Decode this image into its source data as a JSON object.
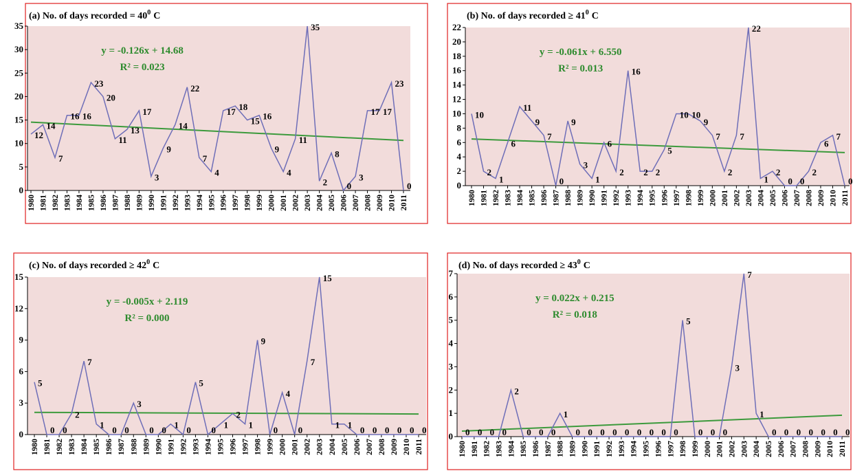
{
  "chart_data": [
    {
      "type": "line",
      "title": "(a) No. of days recorded = 40",
      "title_superscript": "0",
      "title_suffix": "C",
      "equation": "y = -0.126x + 14.68",
      "r_squared": "R² = 0.023",
      "categories": [
        "1980",
        "1981",
        "1982",
        "1983",
        "1984",
        "1985",
        "1986",
        "1987",
        "1988",
        "1989",
        "1990",
        "1991",
        "1992",
        "1993",
        "1994",
        "1995",
        "1996",
        "1997",
        "1998",
        "1999",
        "2000",
        "2001",
        "2002",
        "2003",
        "2004",
        "2005",
        "2006",
        "2007",
        "2008",
        "2009",
        "2010",
        "2011"
      ],
      "series": [
        {
          "color": "#6e6eb8",
          "values": [
            12,
            14,
            7,
            16,
            16,
            23,
            20,
            11,
            13,
            17,
            3,
            9,
            14,
            22,
            7,
            4,
            17,
            18,
            15,
            16,
            9,
            4,
            11,
            35,
            2,
            8,
            0,
            3,
            17,
            17,
            23,
            0
          ]
        }
      ],
      "trendline": {
        "slope": -0.126,
        "intercept": 14.68,
        "color": "#3c9a3c"
      },
      "ylim": [
        0,
        35
      ],
      "yticks": [
        0,
        5,
        10,
        15,
        20,
        25,
        30,
        35
      ]
    },
    {
      "type": "line",
      "title": "(b) No. of days recorded ≥ 41",
      "title_superscript": "0",
      "title_suffix": "C",
      "equation": "y = -0.061x + 6.550",
      "r_squared": "R² = 0.013",
      "categories": [
        "1980",
        "1981",
        "1982",
        "1983",
        "1984",
        "1985",
        "1986",
        "1987",
        "1988",
        "1989",
        "1990",
        "1991",
        "1992",
        "1993",
        "1994",
        "1995",
        "1996",
        "1997",
        "1998",
        "1999",
        "2000",
        "2001",
        "2002",
        "2003",
        "2004",
        "2005",
        "2006",
        "2007",
        "2008",
        "2009",
        "2010",
        "2011"
      ],
      "series": [
        {
          "color": "#6e6eb8",
          "values": [
            10,
            2,
            1,
            6,
            11,
            9,
            7,
            0,
            9,
            3,
            1,
            6,
            2,
            16,
            2,
            2,
            5,
            10,
            10,
            9,
            7,
            2,
            7,
            22,
            1,
            2,
            0,
            0,
            2,
            6,
            7,
            0
          ]
        }
      ],
      "trendline": {
        "slope": -0.061,
        "intercept": 6.55,
        "color": "#3c9a3c"
      },
      "ylim": [
        0,
        22
      ],
      "yticks": [
        0,
        2,
        4,
        6,
        8,
        10,
        12,
        14,
        16,
        18,
        20,
        22
      ]
    },
    {
      "type": "line",
      "title": "(c) No. of days recorded ≥ 42",
      "title_superscript": "0",
      "title_suffix": "C",
      "equation": "y = -0.005x + 2.119",
      "r_squared": "R² = 0.000",
      "categories": [
        "1980",
        "1981",
        "1982",
        "1983",
        "1984",
        "1985",
        "1986",
        "1987",
        "1988",
        "1989",
        "1990",
        "1991",
        "1992",
        "1993",
        "1994",
        "1995",
        "1996",
        "1997",
        "1998",
        "1999",
        "2000",
        "2001",
        "2002",
        "2003",
        "2004",
        "2005",
        "2006",
        "2007",
        "2008",
        "2009",
        "2010",
        "2011"
      ],
      "series": [
        {
          "color": "#6e6eb8",
          "values": [
            5,
            0,
            0,
            2,
            7,
            1,
            0,
            0,
            3,
            0,
            0,
            1,
            0,
            5,
            0,
            1,
            2,
            1,
            9,
            0,
            4,
            0,
            7,
            15,
            1,
            1,
            0,
            0,
            0,
            0,
            0,
            0
          ]
        }
      ],
      "trendline": {
        "slope": -0.005,
        "intercept": 2.119,
        "color": "#3c9a3c"
      },
      "ylim": [
        0,
        15
      ],
      "yticks": [
        0,
        3,
        6,
        9,
        12,
        15
      ]
    },
    {
      "type": "line",
      "title": "(d) No. of days recorded ≥ 43",
      "title_superscript": "0",
      "title_suffix": "C",
      "equation": "y = 0.022x + 0.215",
      "r_squared": "R² = 0.018",
      "categories": [
        "1980",
        "1981",
        "1982",
        "1983",
        "1984",
        "1985",
        "1986",
        "1987",
        "1988",
        "1989",
        "1990",
        "1991",
        "1992",
        "1993",
        "1994",
        "1995",
        "1996",
        "1997",
        "1998",
        "1999",
        "2000",
        "2001",
        "2002",
        "2003",
        "2004",
        "2005",
        "2006",
        "2007",
        "2008",
        "2009",
        "2010",
        "2011"
      ],
      "series": [
        {
          "color": "#6e6eb8",
          "values": [
            0,
            0,
            0,
            0,
            2,
            0,
            0,
            0,
            1,
            0,
            0,
            0,
            0,
            0,
            0,
            0,
            0,
            0,
            5,
            0,
            0,
            0,
            3,
            7,
            1,
            0,
            0,
            0,
            0,
            0,
            0,
            0
          ]
        }
      ],
      "trendline": {
        "slope": 0.022,
        "intercept": 0.215,
        "color": "#3c9a3c"
      },
      "ylim": [
        0,
        7
      ],
      "yticks": [
        0,
        1,
        2,
        3,
        4,
        5,
        6,
        7
      ]
    }
  ]
}
